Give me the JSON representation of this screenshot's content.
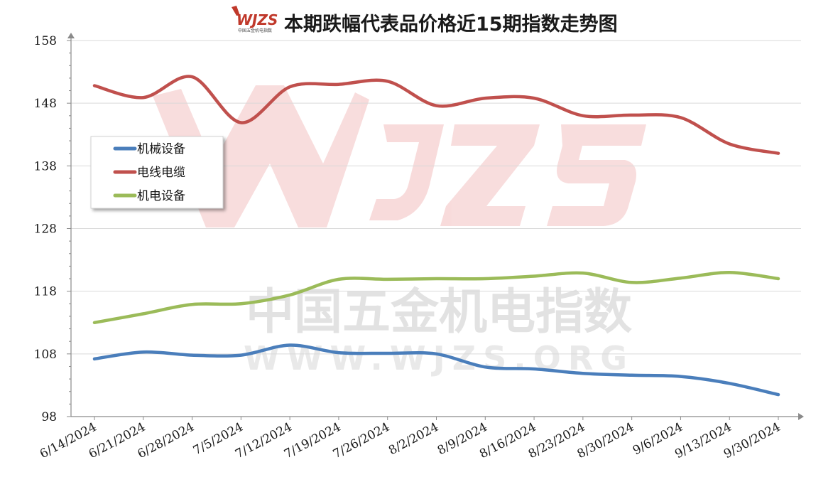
{
  "chart_data": {
    "type": "line",
    "title": "本期跌幅代表品价格近15期指数走势图",
    "logo_text": "WJZS",
    "logo_subtext": "中国五金机电指数",
    "watermark_line1": "中国五金机电指数",
    "watermark_line2": "WWW.WJZS.ORG",
    "categories": [
      "6/14/2024",
      "6/21/2024",
      "6/28/2024",
      "7/5/2024",
      "7/12/2024",
      "7/19/2024",
      "7/26/2024",
      "8/2/2024",
      "8/9/2024",
      "8/16/2024",
      "8/23/2024",
      "8/30/2024",
      "9/6/2024",
      "9/13/2024",
      "9/30/2024"
    ],
    "yticks": [
      "98",
      "108",
      "118",
      "128",
      "138",
      "148",
      "158"
    ],
    "ylim": [
      98,
      158
    ],
    "grid": true,
    "legend_position": "upper-left",
    "series": [
      {
        "name": "机械设备",
        "color": "#4a7ebb",
        "values": [
          107.2,
          108.3,
          107.8,
          107.8,
          109.4,
          108.2,
          108.1,
          108.0,
          105.9,
          105.6,
          104.9,
          104.6,
          104.4,
          103.3,
          101.5
        ]
      },
      {
        "name": "电线电缆",
        "color": "#c0504d",
        "values": [
          150.8,
          148.9,
          152.2,
          144.9,
          150.6,
          151.0,
          151.5,
          147.6,
          148.8,
          148.8,
          146.0,
          146.1,
          145.7,
          141.5,
          140.0
        ]
      },
      {
        "name": "机电设备",
        "color": "#9bbb59",
        "values": [
          113.0,
          114.4,
          115.9,
          116.0,
          117.4,
          119.9,
          119.9,
          120.0,
          120.0,
          120.4,
          120.9,
          119.4,
          120.1,
          121.0,
          120.0
        ]
      }
    ]
  }
}
